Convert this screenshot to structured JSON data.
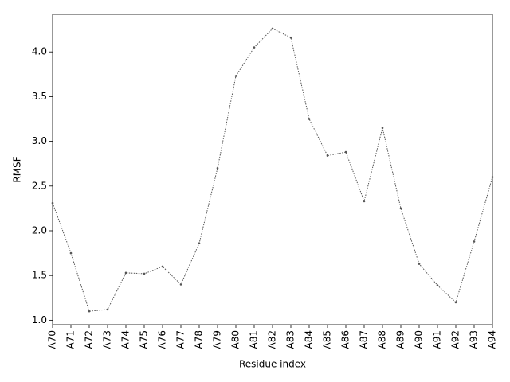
{
  "chart_data": {
    "type": "line",
    "x_label": "Residue index",
    "y_label": "RMSF",
    "categories": [
      "A70",
      "A71",
      "A72",
      "A73",
      "A74",
      "A75",
      "A76",
      "A77",
      "A78",
      "A79",
      "A80",
      "A81",
      "A82",
      "A83",
      "A84",
      "A85",
      "A86",
      "A87",
      "A88",
      "A89",
      "A90",
      "A91",
      "A92",
      "A93",
      "A94"
    ],
    "values": [
      2.31,
      1.75,
      1.1,
      1.12,
      1.53,
      1.52,
      1.6,
      1.4,
      1.86,
      2.7,
      3.73,
      4.05,
      4.26,
      4.16,
      3.25,
      2.84,
      2.88,
      2.33,
      3.15,
      2.25,
      1.63,
      1.39,
      1.2,
      1.88,
      2.6
    ],
    "color": "#555555",
    "ylim": [
      0.95,
      4.42
    ],
    "yticks": [
      {
        "value": 1,
        "label": "1.0"
      },
      1.5,
      {
        "value": 2,
        "label": "2.0"
      },
      2.5,
      {
        "value": 3,
        "label": "3.0"
      },
      3.5,
      {
        "value": 4,
        "label": "4.0"
      }
    ],
    "grid": false
  }
}
